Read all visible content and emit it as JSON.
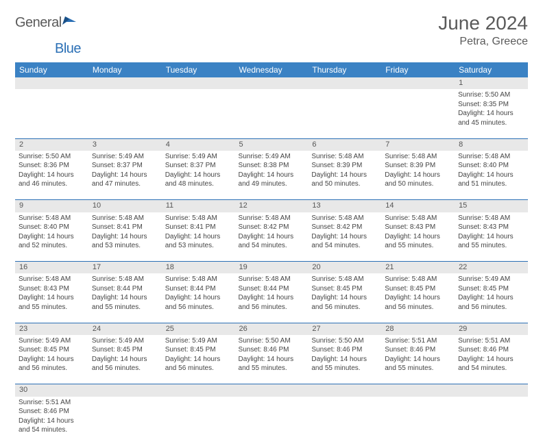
{
  "logo": {
    "part1": "General",
    "part2": "Blue"
  },
  "title": "June 2024",
  "location": "Petra, Greece",
  "colors": {
    "header_bg": "#3b82c4",
    "header_fg": "#ffffff",
    "daynum_bg": "#e8e8e8",
    "border": "#2a6fb5",
    "text": "#444444",
    "logo_gray": "#5a5a5a",
    "logo_blue": "#2a6fb5"
  },
  "weekdays": [
    "Sunday",
    "Monday",
    "Tuesday",
    "Wednesday",
    "Thursday",
    "Friday",
    "Saturday"
  ],
  "weeks": [
    {
      "days": [
        null,
        null,
        null,
        null,
        null,
        null,
        {
          "n": "1",
          "sunrise": "5:50 AM",
          "sunset": "8:35 PM",
          "daylight": "14 hours and 45 minutes."
        }
      ]
    },
    {
      "days": [
        {
          "n": "2",
          "sunrise": "5:50 AM",
          "sunset": "8:36 PM",
          "daylight": "14 hours and 46 minutes."
        },
        {
          "n": "3",
          "sunrise": "5:49 AM",
          "sunset": "8:37 PM",
          "daylight": "14 hours and 47 minutes."
        },
        {
          "n": "4",
          "sunrise": "5:49 AM",
          "sunset": "8:37 PM",
          "daylight": "14 hours and 48 minutes."
        },
        {
          "n": "5",
          "sunrise": "5:49 AM",
          "sunset": "8:38 PM",
          "daylight": "14 hours and 49 minutes."
        },
        {
          "n": "6",
          "sunrise": "5:48 AM",
          "sunset": "8:39 PM",
          "daylight": "14 hours and 50 minutes."
        },
        {
          "n": "7",
          "sunrise": "5:48 AM",
          "sunset": "8:39 PM",
          "daylight": "14 hours and 50 minutes."
        },
        {
          "n": "8",
          "sunrise": "5:48 AM",
          "sunset": "8:40 PM",
          "daylight": "14 hours and 51 minutes."
        }
      ]
    },
    {
      "days": [
        {
          "n": "9",
          "sunrise": "5:48 AM",
          "sunset": "8:40 PM",
          "daylight": "14 hours and 52 minutes."
        },
        {
          "n": "10",
          "sunrise": "5:48 AM",
          "sunset": "8:41 PM",
          "daylight": "14 hours and 53 minutes."
        },
        {
          "n": "11",
          "sunrise": "5:48 AM",
          "sunset": "8:41 PM",
          "daylight": "14 hours and 53 minutes."
        },
        {
          "n": "12",
          "sunrise": "5:48 AM",
          "sunset": "8:42 PM",
          "daylight": "14 hours and 54 minutes."
        },
        {
          "n": "13",
          "sunrise": "5:48 AM",
          "sunset": "8:42 PM",
          "daylight": "14 hours and 54 minutes."
        },
        {
          "n": "14",
          "sunrise": "5:48 AM",
          "sunset": "8:43 PM",
          "daylight": "14 hours and 55 minutes."
        },
        {
          "n": "15",
          "sunrise": "5:48 AM",
          "sunset": "8:43 PM",
          "daylight": "14 hours and 55 minutes."
        }
      ]
    },
    {
      "days": [
        {
          "n": "16",
          "sunrise": "5:48 AM",
          "sunset": "8:43 PM",
          "daylight": "14 hours and 55 minutes."
        },
        {
          "n": "17",
          "sunrise": "5:48 AM",
          "sunset": "8:44 PM",
          "daylight": "14 hours and 55 minutes."
        },
        {
          "n": "18",
          "sunrise": "5:48 AM",
          "sunset": "8:44 PM",
          "daylight": "14 hours and 56 minutes."
        },
        {
          "n": "19",
          "sunrise": "5:48 AM",
          "sunset": "8:44 PM",
          "daylight": "14 hours and 56 minutes."
        },
        {
          "n": "20",
          "sunrise": "5:48 AM",
          "sunset": "8:45 PM",
          "daylight": "14 hours and 56 minutes."
        },
        {
          "n": "21",
          "sunrise": "5:48 AM",
          "sunset": "8:45 PM",
          "daylight": "14 hours and 56 minutes."
        },
        {
          "n": "22",
          "sunrise": "5:49 AM",
          "sunset": "8:45 PM",
          "daylight": "14 hours and 56 minutes."
        }
      ]
    },
    {
      "days": [
        {
          "n": "23",
          "sunrise": "5:49 AM",
          "sunset": "8:45 PM",
          "daylight": "14 hours and 56 minutes."
        },
        {
          "n": "24",
          "sunrise": "5:49 AM",
          "sunset": "8:45 PM",
          "daylight": "14 hours and 56 minutes."
        },
        {
          "n": "25",
          "sunrise": "5:49 AM",
          "sunset": "8:45 PM",
          "daylight": "14 hours and 56 minutes."
        },
        {
          "n": "26",
          "sunrise": "5:50 AM",
          "sunset": "8:46 PM",
          "daylight": "14 hours and 55 minutes."
        },
        {
          "n": "27",
          "sunrise": "5:50 AM",
          "sunset": "8:46 PM",
          "daylight": "14 hours and 55 minutes."
        },
        {
          "n": "28",
          "sunrise": "5:51 AM",
          "sunset": "8:46 PM",
          "daylight": "14 hours and 55 minutes."
        },
        {
          "n": "29",
          "sunrise": "5:51 AM",
          "sunset": "8:46 PM",
          "daylight": "14 hours and 54 minutes."
        }
      ]
    },
    {
      "days": [
        {
          "n": "30",
          "sunrise": "5:51 AM",
          "sunset": "8:46 PM",
          "daylight": "14 hours and 54 minutes."
        },
        null,
        null,
        null,
        null,
        null,
        null
      ]
    }
  ],
  "labels": {
    "sunrise": "Sunrise: ",
    "sunset": "Sunset: ",
    "daylight": "Daylight: "
  }
}
